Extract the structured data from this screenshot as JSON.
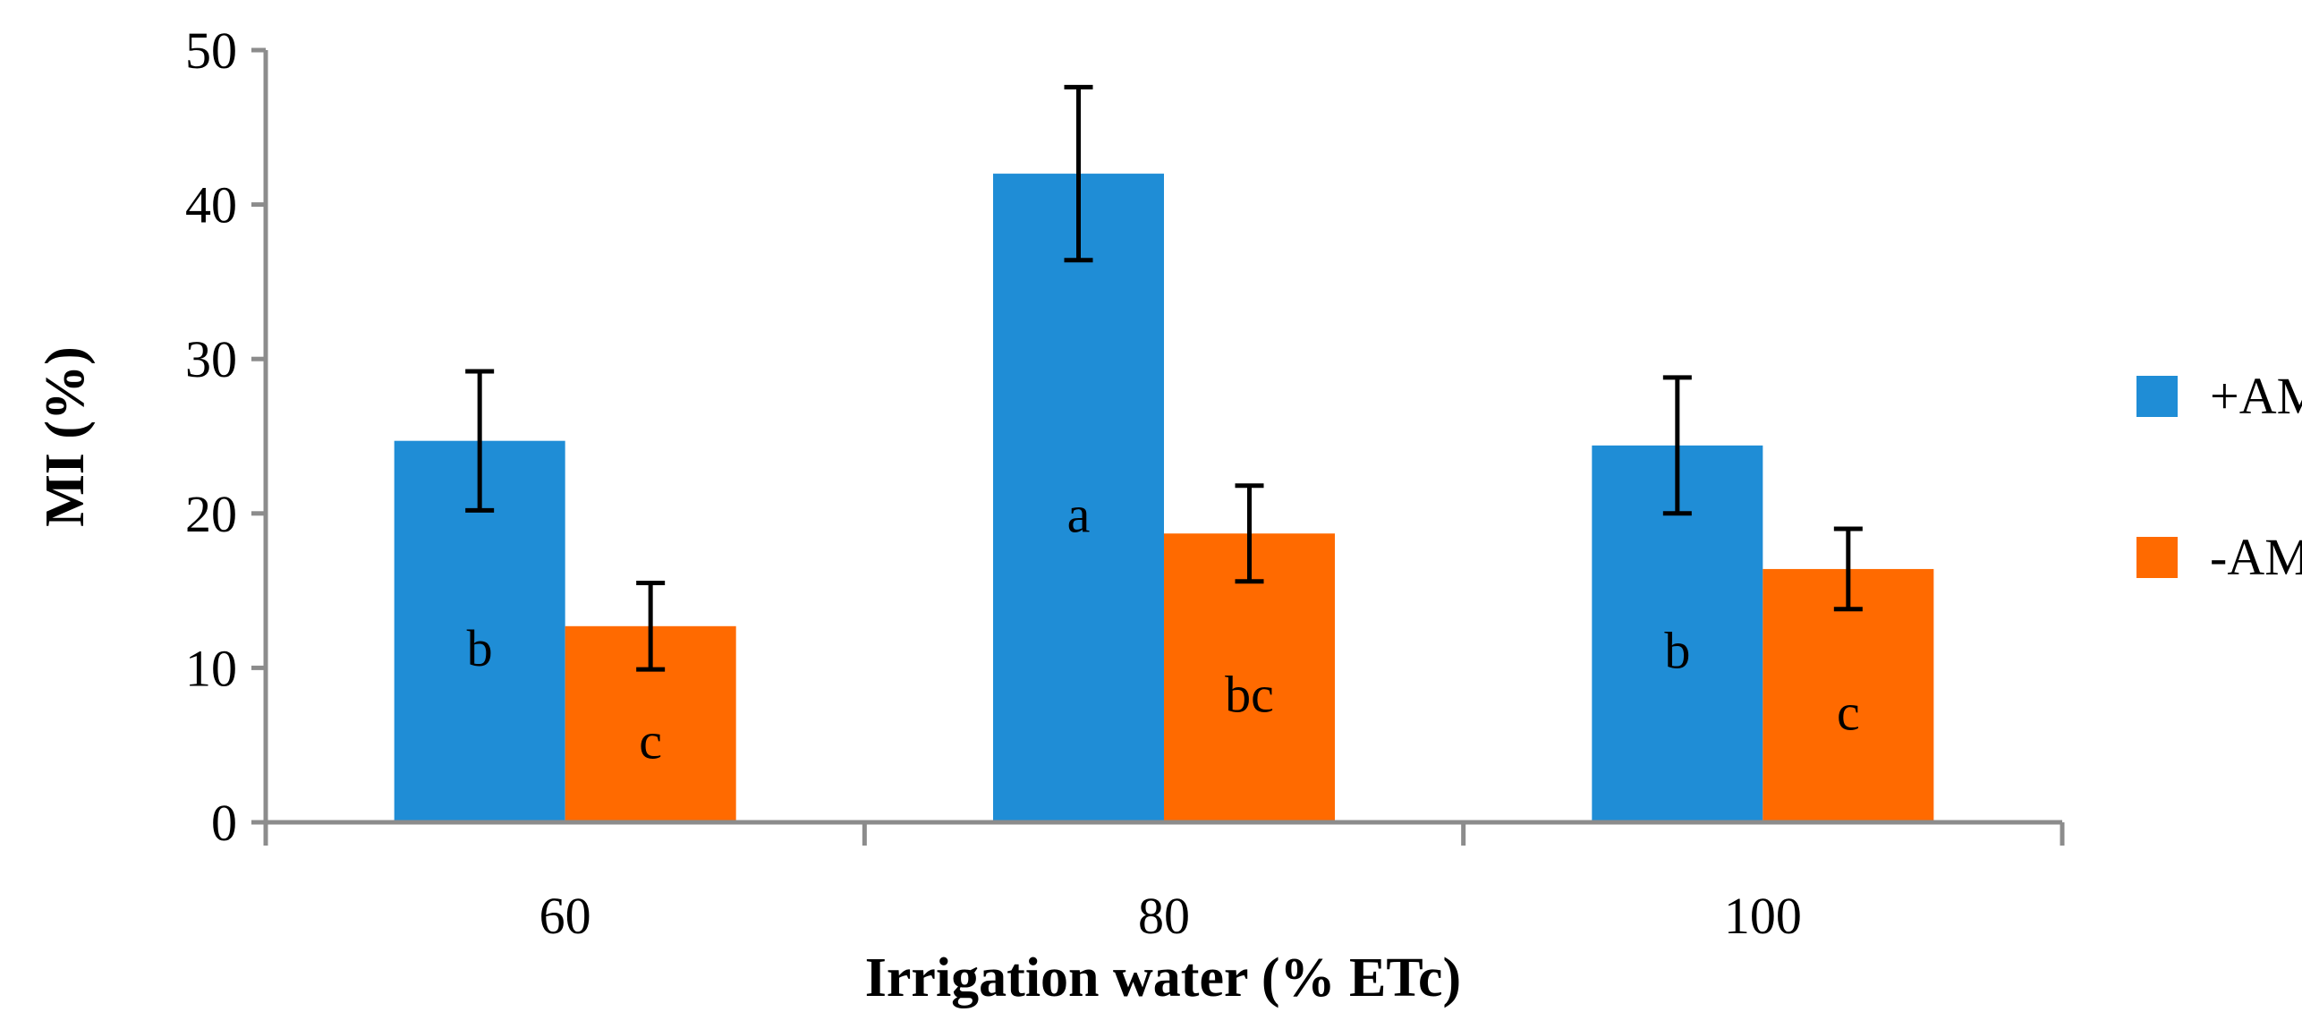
{
  "chart_data": {
    "type": "bar",
    "title": "",
    "xlabel": "Irrigation water (% ETc)",
    "ylabel": "MI (%)",
    "ylim": [
      0,
      50
    ],
    "yticks": [
      "0",
      "10",
      "20",
      "30",
      "40",
      "50"
    ],
    "ytick_values": [
      0,
      10,
      20,
      30,
      40,
      50
    ],
    "categories": [
      "60",
      "80",
      "100"
    ],
    "series": [
      {
        "name": "+AMF",
        "color": "#1f8dd6",
        "values": [
          24.7,
          42.0,
          24.4
        ],
        "errors": [
          4.5,
          5.6,
          4.4
        ],
        "labels": [
          "b",
          "a",
          "b"
        ]
      },
      {
        "name": "-AMF",
        "color": "#ff6a00",
        "values": [
          12.7,
          18.7,
          16.4
        ],
        "errors": [
          2.8,
          3.1,
          2.6
        ],
        "labels": [
          "c",
          "bc",
          "c"
        ]
      }
    ],
    "legend_position": "right",
    "grid": false
  }
}
